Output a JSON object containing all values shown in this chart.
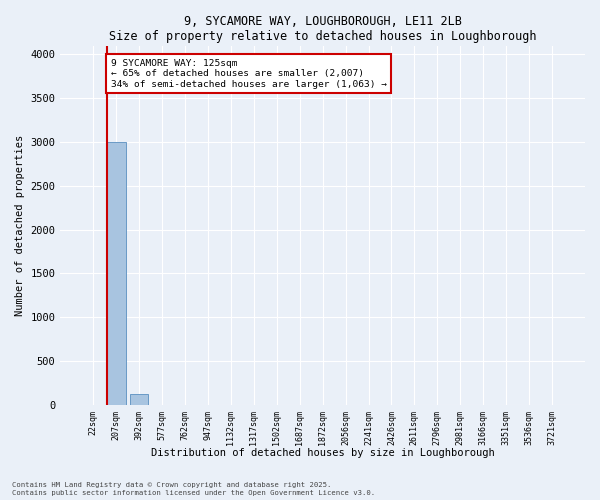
{
  "title1": "9, SYCAMORE WAY, LOUGHBOROUGH, LE11 2LB",
  "title2": "Size of property relative to detached houses in Loughborough",
  "xlabel": "Distribution of detached houses by size in Loughborough",
  "ylabel": "Number of detached properties",
  "bar_labels": [
    "22sqm",
    "207sqm",
    "392sqm",
    "577sqm",
    "762sqm",
    "947sqm",
    "1132sqm",
    "1317sqm",
    "1502sqm",
    "1687sqm",
    "1872sqm",
    "2056sqm",
    "2241sqm",
    "2426sqm",
    "2611sqm",
    "2796sqm",
    "2981sqm",
    "3166sqm",
    "3351sqm",
    "3536sqm",
    "3721sqm"
  ],
  "bar_values": [
    0,
    3000,
    120,
    0,
    0,
    0,
    0,
    0,
    0,
    0,
    0,
    0,
    0,
    0,
    0,
    0,
    0,
    0,
    0,
    0,
    0
  ],
  "bar_color": "#a8c4e0",
  "bar_edge_color": "#5a8fc0",
  "ylim": [
    0,
    4100
  ],
  "yticks": [
    0,
    500,
    1000,
    1500,
    2000,
    2500,
    3000,
    3500,
    4000
  ],
  "annotation_text": "9 SYCAMORE WAY: 125sqm\n← 65% of detached houses are smaller (2,007)\n34% of semi-detached houses are larger (1,063) →",
  "bg_color": "#eaf0f8",
  "grid_color": "#ffffff",
  "red_line_color": "#cc0000",
  "ann_box_edge_color": "#cc0000",
  "footer1": "Contains HM Land Registry data © Crown copyright and database right 2025.",
  "footer2": "Contains public sector information licensed under the Open Government Licence v3.0."
}
